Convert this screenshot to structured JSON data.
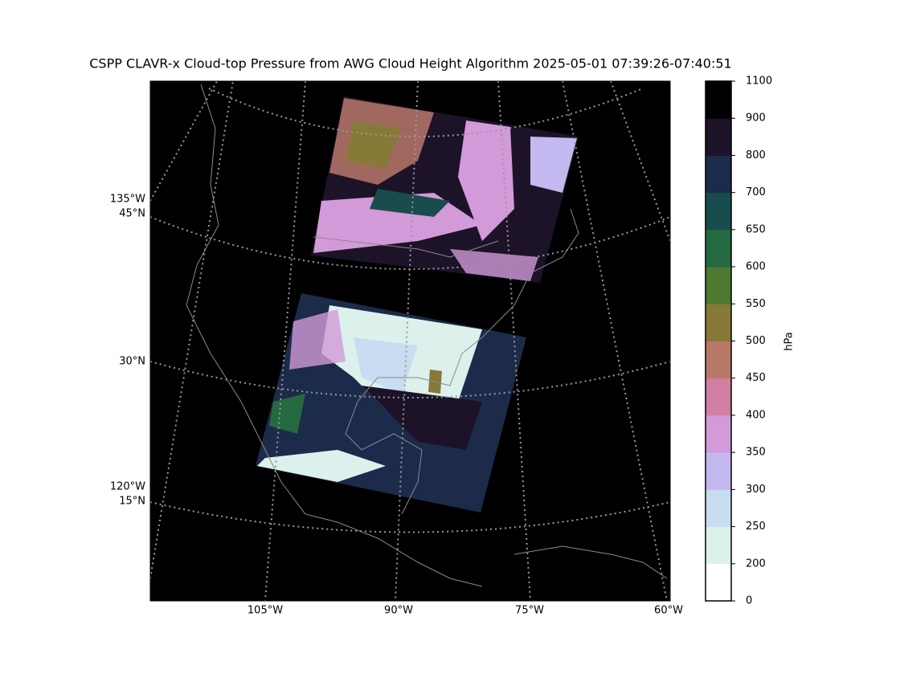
{
  "title": "CSPP CLAVR-x Cloud-top Pressure from AWG Cloud Height Algorithm 2025-05-01 07:39:26-07:40:51",
  "map": {
    "left_labels": [
      [
        "135°W",
        "45°N"
      ],
      "30°N",
      [
        "120°W",
        "15°N"
      ]
    ],
    "bottom_labels": [
      "105°W",
      "90°W",
      "75°W",
      "60°W"
    ]
  },
  "colorbar": {
    "label": "hPa",
    "boundaries": [
      0,
      200,
      250,
      300,
      350,
      400,
      450,
      500,
      550,
      600,
      650,
      700,
      800,
      900,
      1100
    ],
    "colors": [
      "#ffffff",
      "#dcf1ec",
      "#c8dcf2",
      "#c4b8f0",
      "#d29ad8",
      "#d27fa4",
      "#b87868",
      "#877a38",
      "#4d7a30",
      "#256a40",
      "#194c4c",
      "#1c2b4a",
      "#1c1329",
      "#000000"
    ]
  }
}
